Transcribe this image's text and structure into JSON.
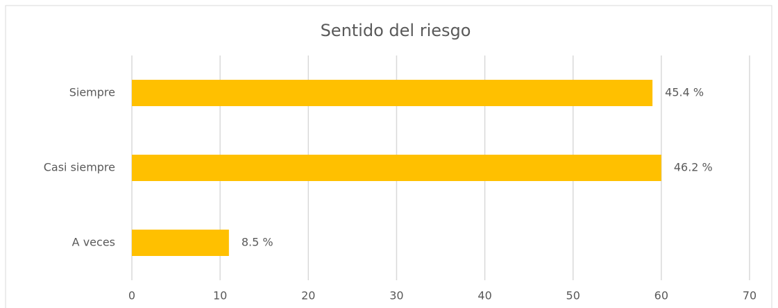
{
  "chart_data": {
    "type": "hbar",
    "title": "Sentido del riesgo",
    "categories": [
      "Siempre",
      "Casi siempre",
      "A veces"
    ],
    "values": [
      59,
      60,
      11
    ],
    "value_labels": [
      "45.4 %",
      "46.2 %",
      "8.5 %"
    ],
    "color": "#ffc000",
    "xlim": [
      0,
      70
    ],
    "xticks": [
      0,
      10,
      20,
      30,
      40,
      50,
      60,
      70
    ],
    "grid": true
  }
}
